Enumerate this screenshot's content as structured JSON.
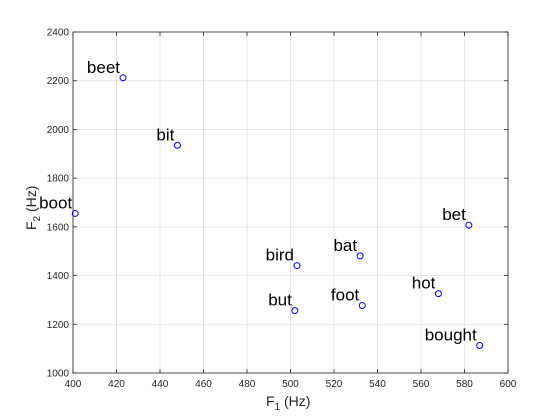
{
  "chart_data": {
    "type": "scatter",
    "xlabel": {
      "main": "F",
      "sub": "1",
      "rest": " (Hz)"
    },
    "ylabel": {
      "main": "F",
      "sub": "2",
      "rest": " (Hz)"
    },
    "xlim": [
      400,
      600
    ],
    "ylim": [
      1000,
      2400
    ],
    "xticks": [
      400,
      420,
      440,
      460,
      480,
      500,
      520,
      540,
      560,
      580,
      600
    ],
    "yticks": [
      1000,
      1200,
      1400,
      1600,
      1800,
      2000,
      2200,
      2400
    ],
    "grid": true,
    "marker_color": "#0000ff",
    "points": [
      {
        "label": "beet",
        "x": 423,
        "y": 2212
      },
      {
        "label": "bit",
        "x": 448,
        "y": 1935
      },
      {
        "label": "boot",
        "x": 401,
        "y": 1655
      },
      {
        "label": "bet",
        "x": 582,
        "y": 1607
      },
      {
        "label": "bird",
        "x": 503,
        "y": 1441
      },
      {
        "label": "bat",
        "x": 532,
        "y": 1481
      },
      {
        "label": "hot",
        "x": 568,
        "y": 1326
      },
      {
        "label": "but",
        "x": 502,
        "y": 1256
      },
      {
        "label": "foot",
        "x": 533,
        "y": 1277
      },
      {
        "label": "bought",
        "x": 587,
        "y": 1113
      }
    ]
  }
}
